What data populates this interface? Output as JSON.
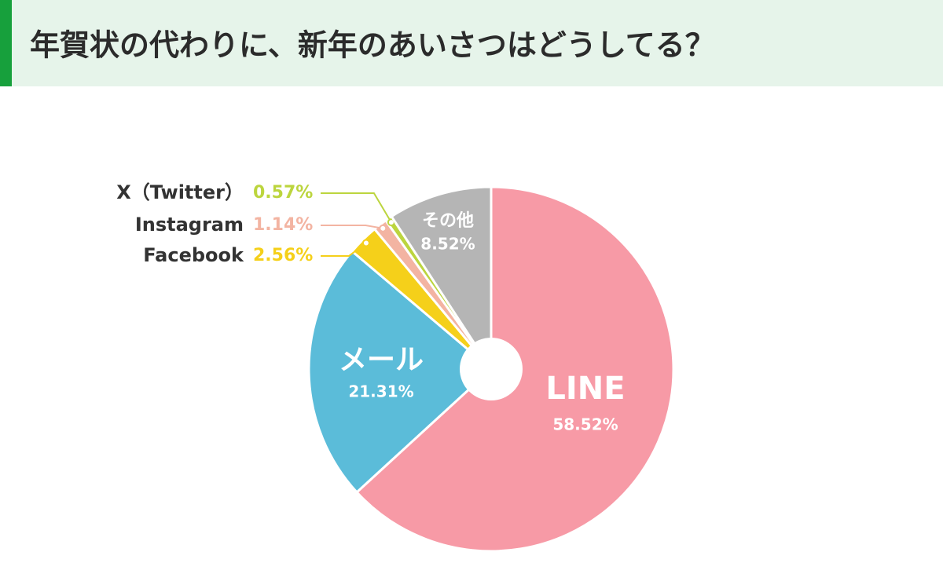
{
  "chart_data": {
    "type": "pie",
    "title": "年賀状の代わりに、新年のあいさつはどうしてる？",
    "categories": [
      "LINE",
      "メール",
      "Facebook",
      "Instagram",
      "X（Twitter）",
      "その他"
    ],
    "values": [
      58.52,
      21.31,
      2.56,
      1.14,
      0.57,
      8.52
    ],
    "value_labels": [
      "58.52%",
      "21.31%",
      "2.56%",
      "1.14%",
      "0.57%",
      "8.52%"
    ],
    "colors": [
      "#f79aa6",
      "#5bbcd9",
      "#f5d01a",
      "#f3b4a2",
      "#bcd53e",
      "#b5b5b5"
    ]
  }
}
